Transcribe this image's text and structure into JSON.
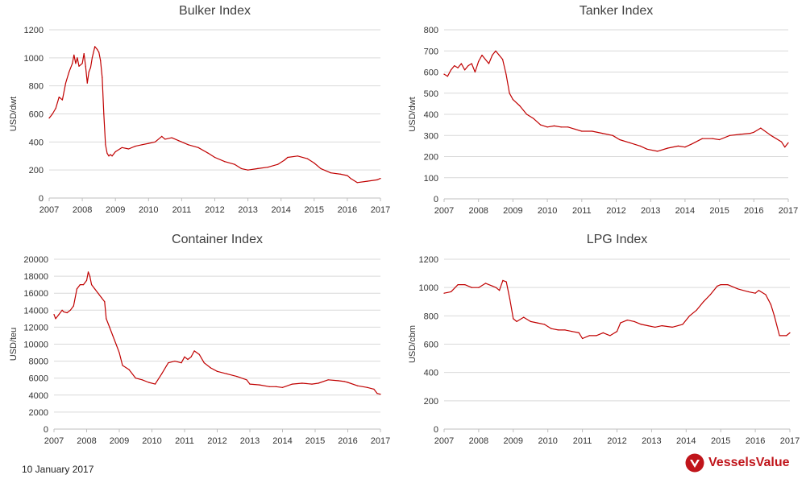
{
  "footer": {
    "date": "10 January 2017"
  },
  "brand": {
    "name": "VesselsValue",
    "color": "#c0151b"
  },
  "colors": {
    "series": "#c00000",
    "grid": "#d9d9d9"
  },
  "chart_data": [
    {
      "type": "line",
      "title": "Bulker Index",
      "ylabel": "USD/dwt",
      "ylim": [
        0,
        1200
      ],
      "yticks": [
        0,
        200,
        400,
        600,
        800,
        1000,
        1200
      ],
      "xlim": [
        2007,
        2017
      ],
      "xticks": [
        2007,
        2008,
        2009,
        2010,
        2011,
        2012,
        2013,
        2014,
        2015,
        2016,
        2017
      ],
      "grid": true,
      "series": [
        {
          "x": [
            2007.0,
            2007.1,
            2007.2,
            2007.3,
            2007.4,
            2007.5,
            2007.6,
            2007.7,
            2007.75,
            2007.8,
            2007.85,
            2007.9,
            2008.0,
            2008.05,
            2008.1,
            2008.15,
            2008.2,
            2008.25,
            2008.3,
            2008.38,
            2008.45,
            2008.5,
            2008.55,
            2008.6,
            2008.65,
            2008.7,
            2008.75,
            2008.8,
            2008.85,
            2008.9,
            2009.0,
            2009.2,
            2009.4,
            2009.6,
            2009.8,
            2010.0,
            2010.2,
            2010.4,
            2010.5,
            2010.7,
            2010.9,
            2011.0,
            2011.2,
            2011.5,
            2011.8,
            2012.0,
            2012.3,
            2012.6,
            2012.8,
            2013.0,
            2013.3,
            2013.6,
            2013.9,
            2014.1,
            2014.2,
            2014.5,
            2014.8,
            2015.0,
            2015.2,
            2015.5,
            2015.8,
            2016.0,
            2016.1,
            2016.3,
            2016.6,
            2016.9,
            2017.0
          ],
          "y": [
            570,
            600,
            640,
            720,
            700,
            820,
            900,
            960,
            1020,
            960,
            1000,
            940,
            960,
            1030,
            940,
            820,
            900,
            930,
            1000,
            1080,
            1060,
            1040,
            980,
            860,
            600,
            380,
            320,
            300,
            310,
            300,
            330,
            360,
            350,
            370,
            380,
            390,
            400,
            440,
            420,
            430,
            410,
            400,
            380,
            360,
            320,
            290,
            260,
            240,
            210,
            200,
            210,
            220,
            240,
            270,
            290,
            300,
            280,
            250,
            210,
            180,
            170,
            160,
            140,
            110,
            120,
            130,
            140
          ]
        }
      ]
    },
    {
      "type": "line",
      "title": "Tanker Index",
      "ylabel": "USD/dwt",
      "ylim": [
        0,
        800
      ],
      "yticks": [
        0,
        100,
        200,
        300,
        400,
        500,
        600,
        700,
        800
      ],
      "xlim": [
        2007,
        2017
      ],
      "xticks": [
        2007,
        2008,
        2009,
        2010,
        2011,
        2012,
        2013,
        2014,
        2015,
        2016,
        2017
      ],
      "grid": true,
      "series": [
        {
          "x": [
            2007.0,
            2007.1,
            2007.2,
            2007.3,
            2007.4,
            2007.5,
            2007.6,
            2007.7,
            2007.8,
            2007.9,
            2008.0,
            2008.1,
            2008.2,
            2008.3,
            2008.4,
            2008.5,
            2008.6,
            2008.7,
            2008.8,
            2008.9,
            2009.0,
            2009.2,
            2009.4,
            2009.6,
            2009.8,
            2010.0,
            2010.2,
            2010.4,
            2010.6,
            2010.8,
            2011.0,
            2011.3,
            2011.6,
            2011.9,
            2012.1,
            2012.4,
            2012.7,
            2012.9,
            2013.2,
            2013.5,
            2013.8,
            2014.0,
            2014.2,
            2014.5,
            2014.8,
            2015.0,
            2015.3,
            2015.6,
            2015.9,
            2016.0,
            2016.2,
            2016.5,
            2016.8,
            2016.9,
            2017.0
          ],
          "y": [
            590,
            580,
            610,
            630,
            620,
            640,
            610,
            630,
            640,
            600,
            650,
            680,
            660,
            640,
            680,
            700,
            680,
            660,
            590,
            500,
            470,
            440,
            400,
            380,
            350,
            340,
            345,
            340,
            340,
            330,
            320,
            320,
            310,
            300,
            280,
            265,
            250,
            235,
            225,
            240,
            250,
            245,
            260,
            285,
            285,
            280,
            300,
            305,
            310,
            315,
            335,
            300,
            270,
            245,
            265
          ]
        }
      ]
    },
    {
      "type": "line",
      "title": "Container Index",
      "ylabel": "USD/teu",
      "ylim": [
        0,
        20000
      ],
      "yticks": [
        0,
        2000,
        4000,
        6000,
        8000,
        10000,
        12000,
        14000,
        16000,
        18000,
        20000
      ],
      "xlim": [
        2007,
        2017
      ],
      "xticks": [
        2007,
        2008,
        2009,
        2010,
        2011,
        2012,
        2013,
        2014,
        2015,
        2016,
        2017
      ],
      "grid": true,
      "series": [
        {
          "x": [
            2007.0,
            2007.05,
            2007.15,
            2007.25,
            2007.3,
            2007.4,
            2007.5,
            2007.6,
            2007.7,
            2007.8,
            2007.9,
            2008.0,
            2008.05,
            2008.1,
            2008.15,
            2008.25,
            2008.35,
            2008.45,
            2008.55,
            2008.6,
            2008.7,
            2008.8,
            2008.9,
            2009.0,
            2009.1,
            2009.3,
            2009.5,
            2009.7,
            2009.9,
            2010.1,
            2010.3,
            2010.5,
            2010.7,
            2010.9,
            2011.0,
            2011.1,
            2011.2,
            2011.3,
            2011.45,
            2011.6,
            2011.8,
            2012.0,
            2012.3,
            2012.6,
            2012.9,
            2013.0,
            2013.3,
            2013.6,
            2013.8,
            2014.0,
            2014.3,
            2014.6,
            2014.9,
            2015.1,
            2015.4,
            2015.7,
            2015.9,
            2016.0,
            2016.3,
            2016.6,
            2016.8,
            2016.9,
            2017.0
          ],
          "y": [
            13500,
            13000,
            13500,
            14000,
            13800,
            13700,
            14000,
            14500,
            16500,
            17000,
            17000,
            17500,
            18500,
            18000,
            17000,
            16500,
            16000,
            15500,
            15000,
            13000,
            12000,
            11000,
            10000,
            9000,
            7500,
            7000,
            6000,
            5800,
            5500,
            5300,
            6500,
            7800,
            8000,
            7800,
            8500,
            8200,
            8500,
            9200,
            8800,
            7800,
            7200,
            6800,
            6500,
            6200,
            5800,
            5300,
            5200,
            5000,
            5000,
            4900,
            5300,
            5400,
            5300,
            5400,
            5800,
            5700,
            5600,
            5500,
            5100,
            4900,
            4700,
            4200,
            4100
          ]
        }
      ]
    },
    {
      "type": "line",
      "title": "LPG Index",
      "ylabel": "USD/cbm",
      "ylim": [
        0,
        1200
      ],
      "yticks": [
        0,
        200,
        400,
        600,
        800,
        1000,
        1200
      ],
      "xlim": [
        2007,
        2017
      ],
      "xticks": [
        2007,
        2008,
        2009,
        2010,
        2011,
        2012,
        2013,
        2014,
        2015,
        2016,
        2017
      ],
      "grid": true,
      "series": [
        {
          "x": [
            2007.0,
            2007.2,
            2007.4,
            2007.6,
            2007.8,
            2008.0,
            2008.2,
            2008.4,
            2008.5,
            2008.6,
            2008.7,
            2008.8,
            2008.9,
            2009.0,
            2009.1,
            2009.3,
            2009.5,
            2009.7,
            2009.9,
            2010.1,
            2010.3,
            2010.5,
            2010.7,
            2010.9,
            2011.0,
            2011.2,
            2011.4,
            2011.6,
            2011.8,
            2012.0,
            2012.1,
            2012.3,
            2012.5,
            2012.7,
            2012.9,
            2013.1,
            2013.3,
            2013.6,
            2013.9,
            2014.1,
            2014.3,
            2014.5,
            2014.7,
            2014.9,
            2015.0,
            2015.2,
            2015.5,
            2015.8,
            2016.0,
            2016.1,
            2016.3,
            2016.45,
            2016.55,
            2016.7,
            2016.9,
            2017.0
          ],
          "y": [
            960,
            970,
            1020,
            1020,
            1000,
            1000,
            1030,
            1010,
            1000,
            980,
            1050,
            1040,
            920,
            780,
            760,
            790,
            760,
            750,
            740,
            710,
            700,
            700,
            690,
            680,
            640,
            660,
            660,
            680,
            660,
            690,
            750,
            770,
            760,
            740,
            730,
            720,
            730,
            720,
            740,
            800,
            840,
            900,
            950,
            1010,
            1020,
            1020,
            990,
            970,
            960,
            980,
            950,
            880,
            800,
            660,
            660,
            680
          ]
        }
      ]
    }
  ]
}
